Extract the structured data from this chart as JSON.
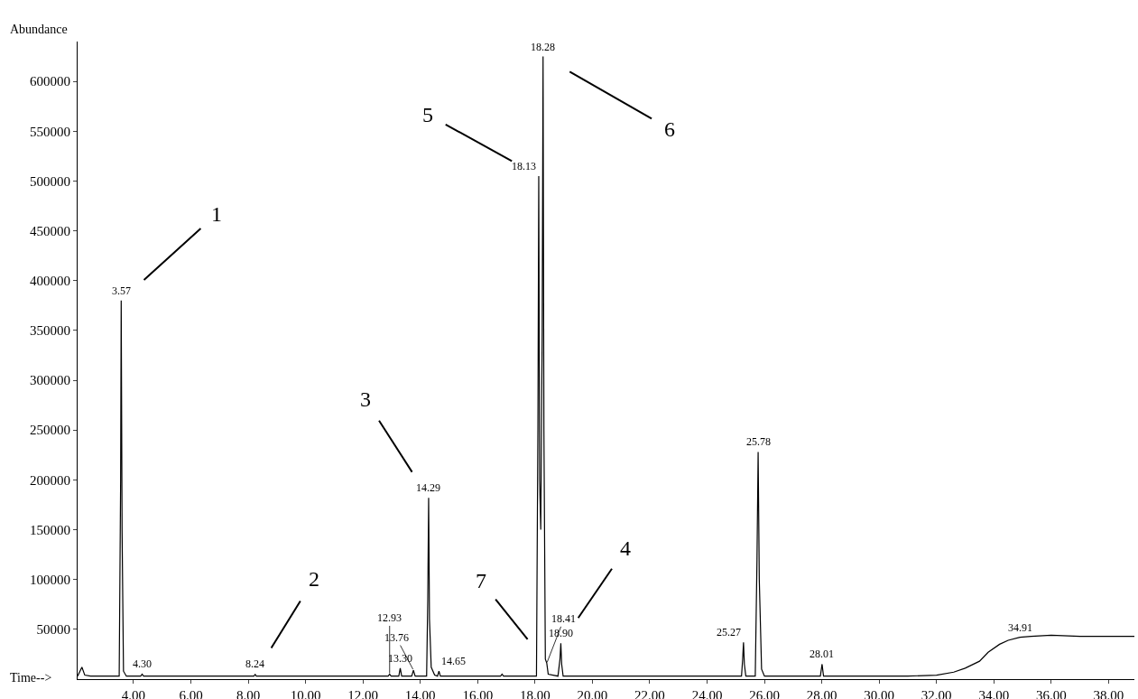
{
  "chart_data": {
    "type": "line",
    "xlabel": "Time-->",
    "ylabel": "Abundance",
    "x": [
      2.05,
      2.2,
      2.3,
      2.5,
      3.5,
      3.55,
      3.57,
      3.6,
      3.65,
      3.75,
      4.25,
      4.3,
      4.35,
      8.2,
      8.24,
      8.28,
      12.88,
      12.93,
      12.98,
      13.25,
      13.3,
      13.35,
      13.7,
      13.76,
      13.82,
      14.22,
      14.26,
      14.29,
      14.32,
      14.38,
      14.5,
      14.6,
      14.65,
      14.7,
      16.8,
      16.85,
      16.9,
      18.05,
      18.1,
      18.13,
      18.16,
      18.2,
      18.25,
      18.28,
      18.31,
      18.36,
      18.41,
      18.46,
      18.8,
      18.87,
      18.9,
      18.93,
      18.98,
      25.2,
      25.24,
      25.27,
      25.3,
      25.35,
      25.68,
      25.74,
      25.78,
      25.82,
      25.9,
      26.0,
      27.95,
      28.01,
      28.06,
      31.0,
      32.0,
      32.6,
      33.0,
      33.5,
      33.8,
      34.2,
      34.5,
      34.91,
      35.3,
      36.0,
      37.0,
      38.0,
      38.9
    ],
    "series": [
      {
        "color": "#000000",
        "values": [
          3000,
          12000,
          4000,
          3000,
          3000,
          200000,
          380000,
          150000,
          8000,
          3000,
          3000,
          5000,
          3000,
          3000,
          5000,
          3000,
          3000,
          5000,
          3000,
          3000,
          11000,
          3000,
          3000,
          9000,
          3000,
          3000,
          80000,
          182000,
          60000,
          12000,
          4000,
          3000,
          8000,
          3000,
          3000,
          5000,
          3000,
          3000,
          250000,
          505000,
          200000,
          150000,
          350000,
          625000,
          250000,
          20000,
          16000,
          5000,
          3000,
          20000,
          36000,
          15000,
          3000,
          3000,
          20000,
          37000,
          15000,
          3000,
          3000,
          120000,
          228000,
          100000,
          10000,
          3000,
          3000,
          15000,
          3000,
          3000,
          4000,
          7000,
          11000,
          18000,
          27000,
          35000,
          39000,
          42000,
          43000,
          44000,
          43000,
          43000,
          43000
        ]
      }
    ],
    "xlim": [
      2.05,
      38.9
    ],
    "ylim": [
      0,
      640000
    ],
    "xticks": [
      {
        "value": 4,
        "label": "4.00"
      },
      {
        "value": 6,
        "label": "6.00"
      },
      {
        "value": 8,
        "label": "8.00"
      },
      {
        "value": 10,
        "label": "10.00"
      },
      {
        "value": 12,
        "label": "12.00"
      },
      {
        "value": 14,
        "label": "14.00"
      },
      {
        "value": 16,
        "label": "16.00"
      },
      {
        "value": 18,
        "label": "18.00"
      },
      {
        "value": 20,
        "label": "20.00"
      },
      {
        "value": 22,
        "label": "22.00"
      },
      {
        "value": 24,
        "label": "24.00"
      },
      {
        "value": 26,
        "label": "26.00"
      },
      {
        "value": 28,
        "label": "28.00"
      },
      {
        "value": 30,
        "label": "30.00"
      },
      {
        "value": 32,
        "label": "32.00"
      },
      {
        "value": 34,
        "label": "34.00"
      },
      {
        "value": 36,
        "label": "36.00"
      },
      {
        "value": 38,
        "label": "38.00"
      }
    ],
    "yticks": [
      50000,
      100000,
      150000,
      200000,
      250000,
      300000,
      350000,
      400000,
      450000,
      500000,
      550000,
      600000
    ],
    "grid": false,
    "legend": false,
    "marker": "none",
    "line_style": "solid",
    "annotations": [
      {
        "text": "3.57",
        "x": 3.57,
        "y": 380000
      },
      {
        "text": "4.30",
        "x": 4.3,
        "y": 5000
      },
      {
        "text": "8.24",
        "x": 8.24,
        "y": 5000
      },
      {
        "text": "12.93",
        "x": 12.93,
        "y": 5000
      },
      {
        "text": "13.30",
        "x": 13.3,
        "y": 11000
      },
      {
        "text": "13.76",
        "x": 13.76,
        "y": 9000
      },
      {
        "text": "14.29",
        "x": 14.29,
        "y": 182000
      },
      {
        "text": "14.65",
        "x": 14.65,
        "y": 8000
      },
      {
        "text": "18.13",
        "x": 18.13,
        "y": 505000
      },
      {
        "text": "18.28",
        "x": 18.28,
        "y": 625000
      },
      {
        "text": "18.41",
        "x": 18.41,
        "y": 16000
      },
      {
        "text": "18.90",
        "x": 18.9,
        "y": 36000
      },
      {
        "text": "25.27",
        "x": 25.27,
        "y": 37000
      },
      {
        "text": "25.78",
        "x": 25.78,
        "y": 228000
      },
      {
        "text": "28.01",
        "x": 28.01,
        "y": 15000
      },
      {
        "text": "34.91",
        "x": 34.91,
        "y": 42000
      },
      {
        "text": "1",
        "x": 3.57,
        "y": 380000
      },
      {
        "text": "2",
        "x": 8.24,
        "y": 5000
      },
      {
        "text": "3",
        "x": 14.29,
        "y": 182000
      },
      {
        "text": "4",
        "x": 18.9,
        "y": 36000
      },
      {
        "text": "5",
        "x": 18.13,
        "y": 505000
      },
      {
        "text": "6",
        "x": 18.28,
        "y": 625000
      },
      {
        "text": "7",
        "x": 18.41,
        "y": 16000
      }
    ]
  }
}
